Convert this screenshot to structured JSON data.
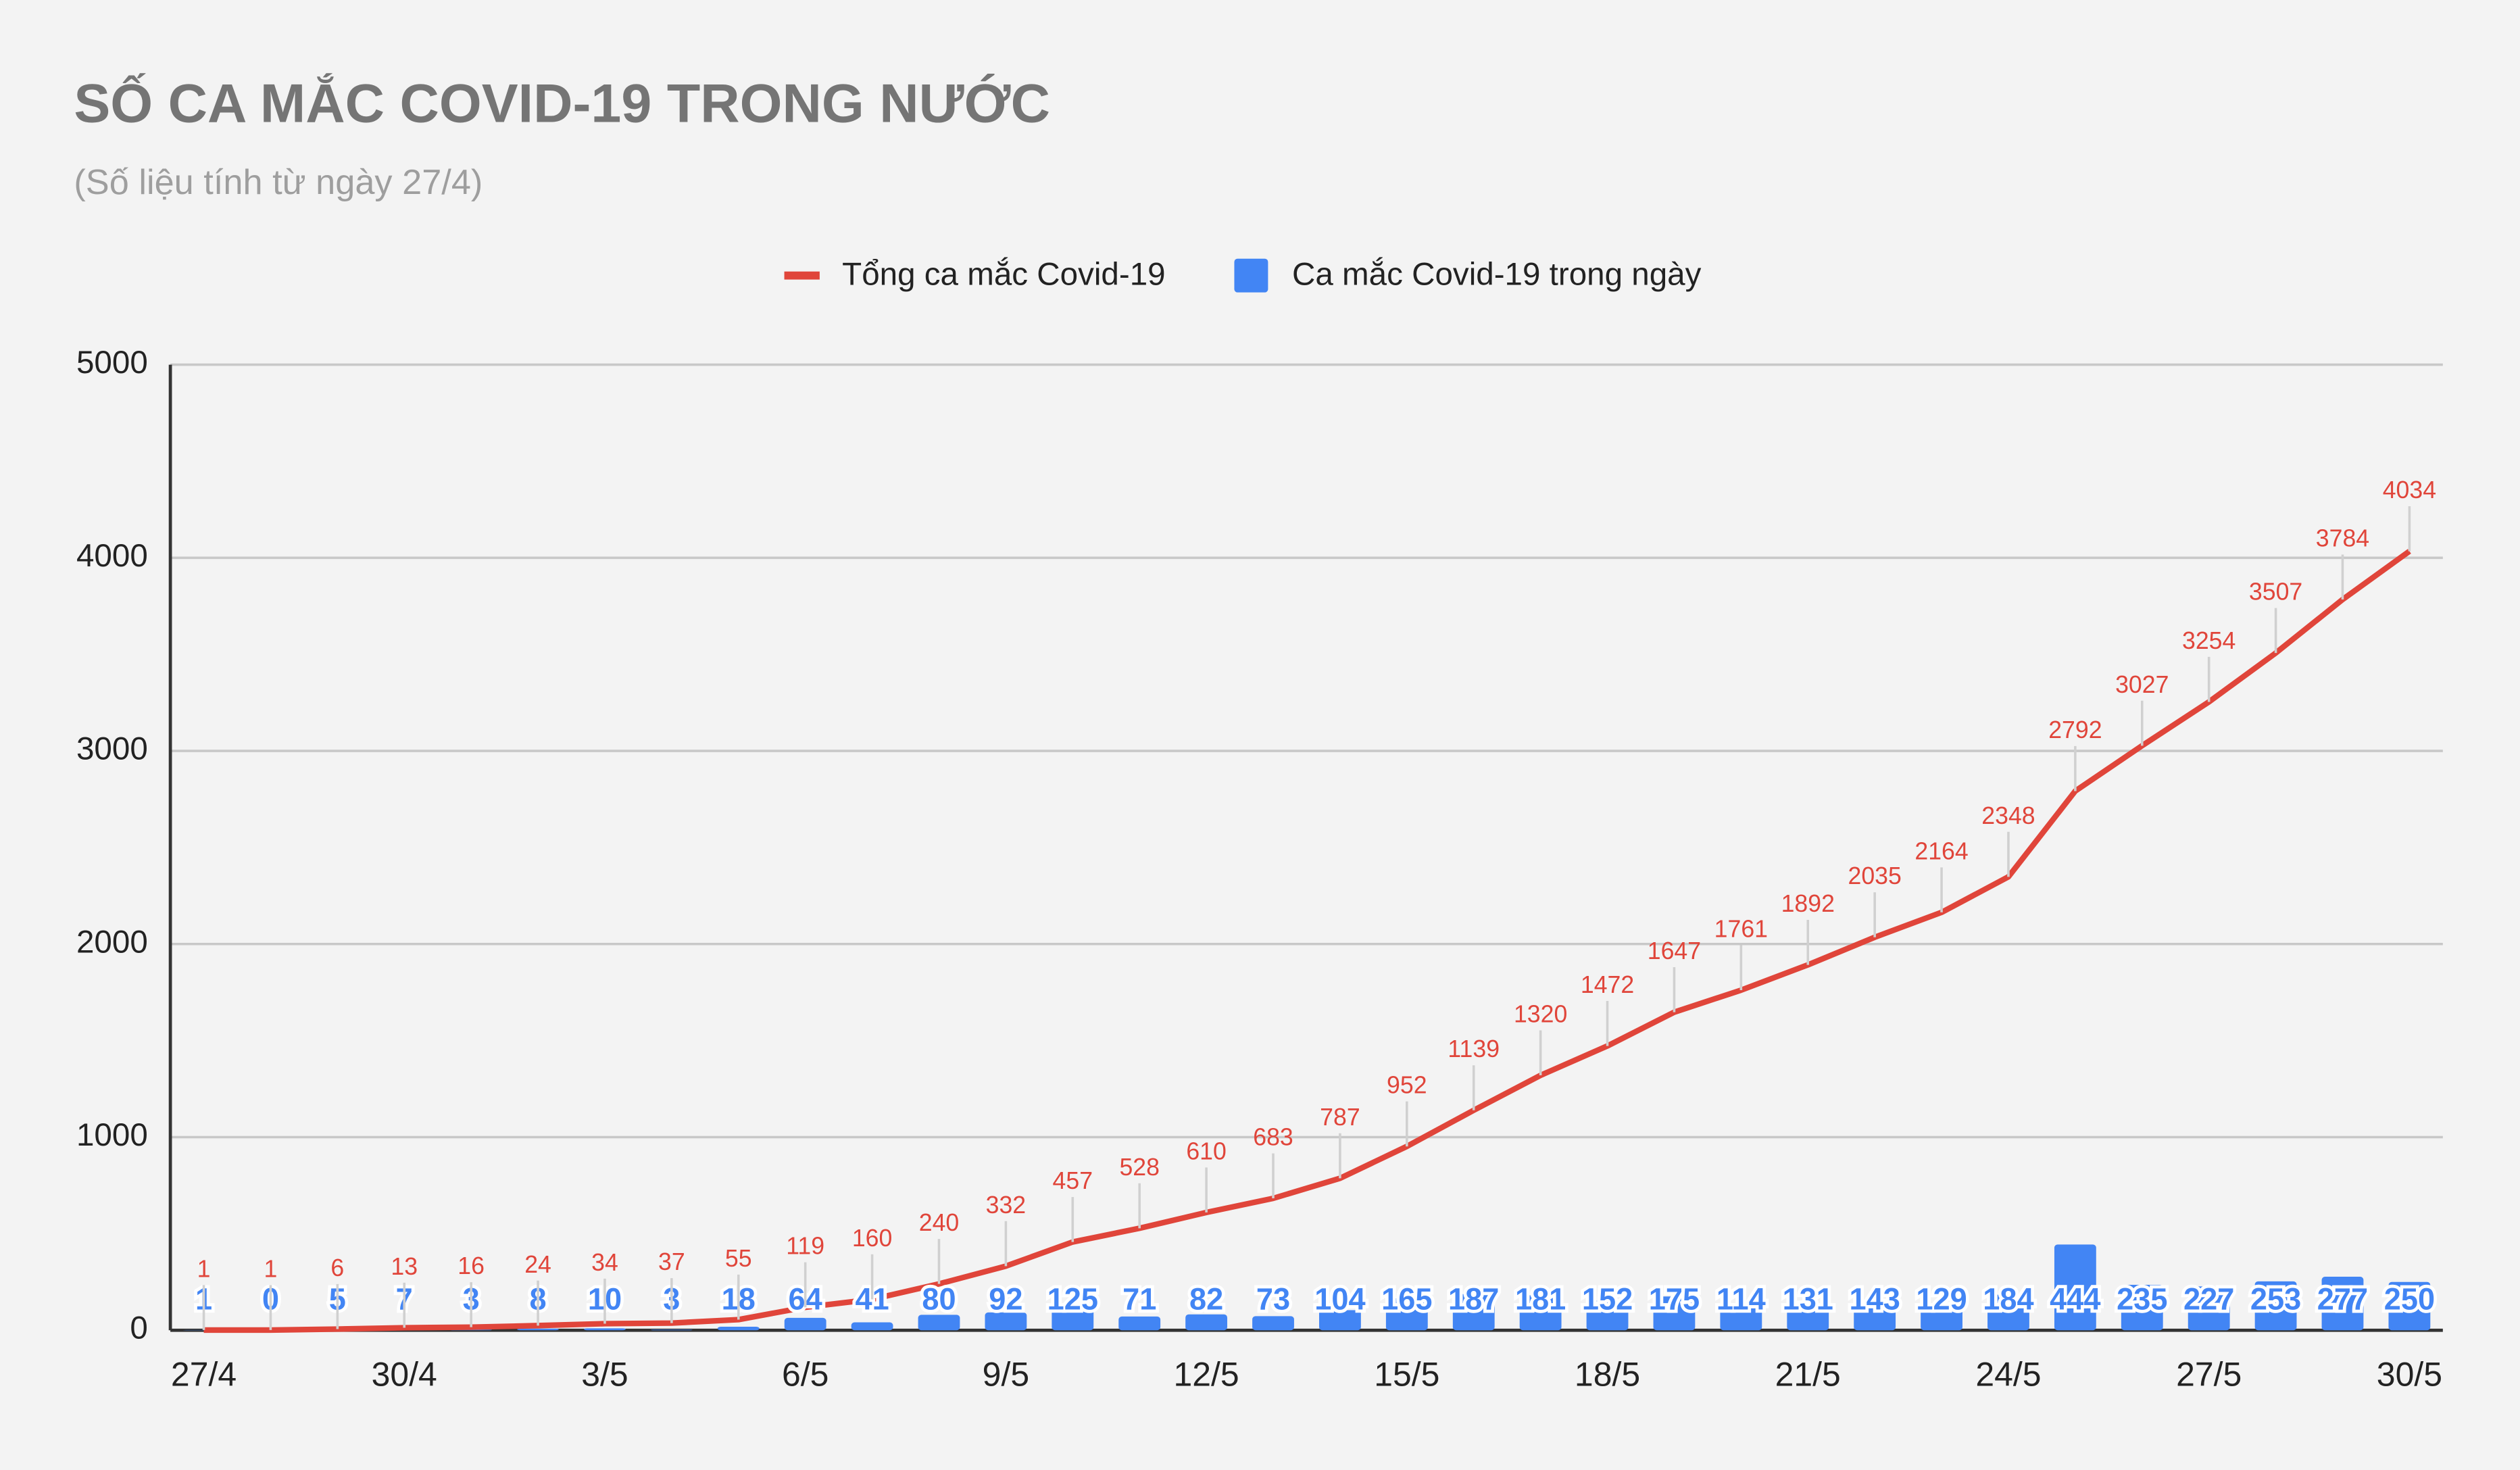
{
  "chart_data": {
    "type": "bar-line",
    "title": "SỐ CA MẮC COVID-19 TRONG NƯỚC",
    "subtitle": "(Số liệu tính từ ngày 27/4)",
    "categories": [
      "27/4",
      null,
      null,
      "30/4",
      null,
      null,
      "3/5",
      null,
      null,
      "6/5",
      null,
      null,
      "9/5",
      null,
      null,
      "12/5",
      null,
      null,
      "15/5",
      null,
      null,
      "18/5",
      null,
      null,
      "21/5",
      null,
      null,
      "24/5",
      null,
      null,
      "27/5",
      null,
      null,
      "30/5"
    ],
    "series": [
      {
        "name": "Tổng ca mắc Covid-19",
        "type": "line",
        "color": "#e0453a",
        "values": [
          1,
          1,
          6,
          13,
          16,
          24,
          34,
          37,
          55,
          119,
          160,
          240,
          332,
          457,
          528,
          610,
          683,
          787,
          952,
          1139,
          1320,
          1472,
          1647,
          1761,
          1892,
          2035,
          2164,
          2348,
          2792,
          3027,
          3254,
          3507,
          3784,
          4034
        ]
      },
      {
        "name": "Ca mắc Covid-19 trong ngày",
        "type": "bar",
        "color": "#4285f4",
        "values": [
          1,
          0,
          5,
          7,
          3,
          8,
          10,
          3,
          18,
          64,
          41,
          80,
          92,
          125,
          71,
          82,
          73,
          104,
          165,
          187,
          181,
          152,
          175,
          114,
          131,
          143,
          129,
          184,
          444,
          235,
          227,
          253,
          277,
          250
        ]
      }
    ],
    "ylim": [
      0,
      5000
    ],
    "yticks": [
      0,
      1000,
      2000,
      3000,
      4000,
      5000
    ],
    "grid": true,
    "legend": "top"
  }
}
